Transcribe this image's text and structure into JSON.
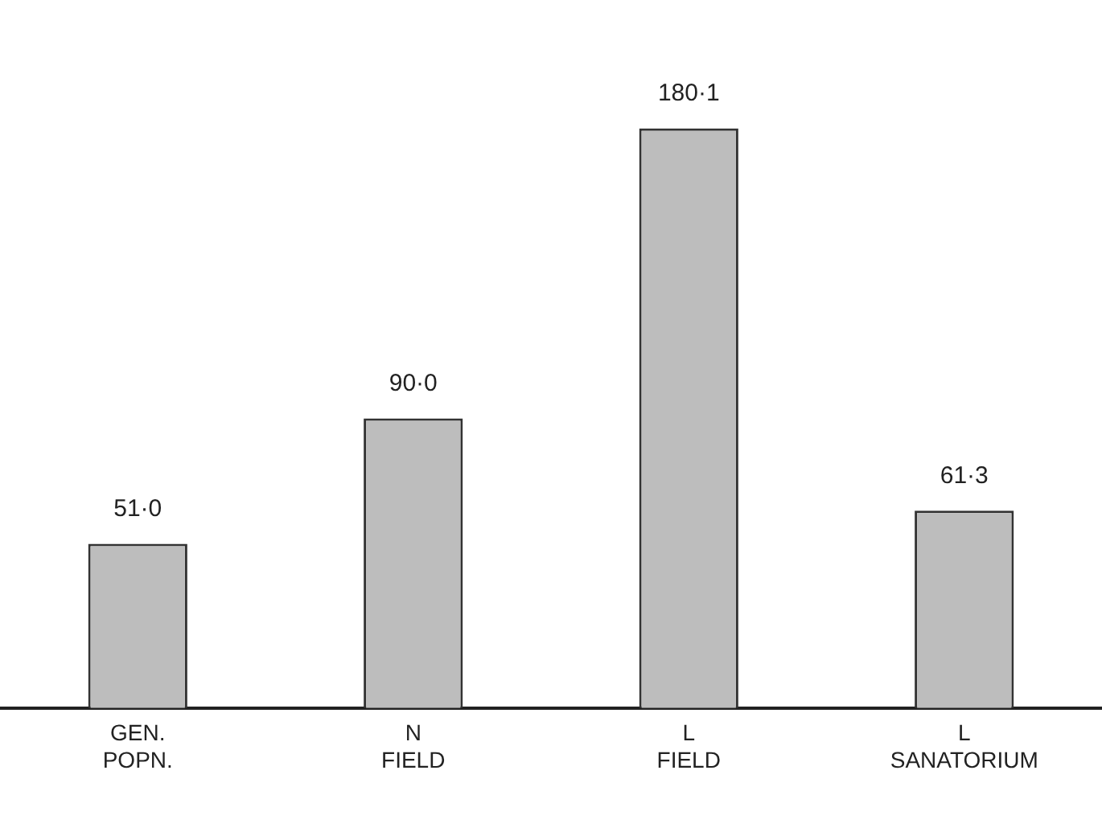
{
  "chart_data": {
    "type": "bar",
    "categories": [
      "GEN.\nPOPN.",
      "N\nFIELD",
      "L\nFIELD",
      "L\nSANATORIUM"
    ],
    "values": [
      51.0,
      90.0,
      180.1,
      61.3
    ],
    "value_labels": [
      "51·0",
      "90·0",
      "180·1",
      "61·3"
    ],
    "color": "#bdbdbd",
    "tick_labels": "x",
    "grid": false,
    "legend": false
  }
}
